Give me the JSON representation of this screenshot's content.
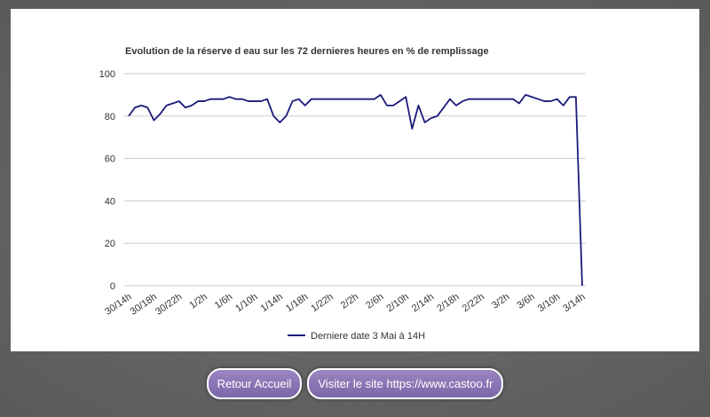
{
  "chart_data": {
    "type": "line",
    "title": "Evolution de la réserve d eau sur les 72 dernieres heures en % de remplissage",
    "categories": [
      "30/14h",
      null,
      null,
      null,
      "30/18h",
      null,
      null,
      null,
      "30/22h",
      null,
      null,
      null,
      "1/2h",
      null,
      null,
      null,
      "1/6h",
      null,
      null,
      null,
      "1/10h",
      null,
      null,
      null,
      "1/14h",
      null,
      null,
      null,
      "1/18h",
      null,
      null,
      null,
      "1/22h",
      null,
      null,
      null,
      "2/2h",
      null,
      null,
      null,
      "2/6h",
      null,
      null,
      null,
      "2/10h",
      null,
      null,
      null,
      "2/14h",
      null,
      null,
      null,
      "2/18h",
      null,
      null,
      null,
      "2/22h",
      null,
      null,
      null,
      "3/2h",
      null,
      null,
      null,
      "3/6h",
      null,
      null,
      null,
      "3/10h",
      null,
      null,
      null,
      "3/14h"
    ],
    "series": [
      {
        "name": "Derniere date 3 Mai à 14H",
        "color": "#1a1a7a",
        "values": [
          80,
          84,
          85,
          84,
          78,
          81,
          85,
          86,
          87,
          84,
          85,
          87,
          87,
          88,
          88,
          88,
          89,
          88,
          88,
          87,
          87,
          87,
          88,
          80,
          77,
          80,
          87,
          88,
          85,
          88,
          88,
          88,
          88,
          88,
          88,
          88,
          88,
          88,
          88,
          88,
          90,
          85,
          85,
          87,
          89,
          74,
          85,
          77,
          79,
          80,
          84,
          88,
          85,
          87,
          88,
          88,
          88,
          88,
          88,
          88,
          88,
          88,
          86,
          90,
          89,
          88,
          87,
          87,
          88,
          85,
          89,
          89,
          0
        ]
      }
    ],
    "ylim": [
      0,
      100
    ],
    "yticks": [
      0,
      20,
      40,
      60,
      80,
      100
    ],
    "grid": true,
    "legend": "bottom"
  },
  "buttons": [
    "Retour Accueil",
    "Visiter le site https://www.castoo.fr"
  ]
}
